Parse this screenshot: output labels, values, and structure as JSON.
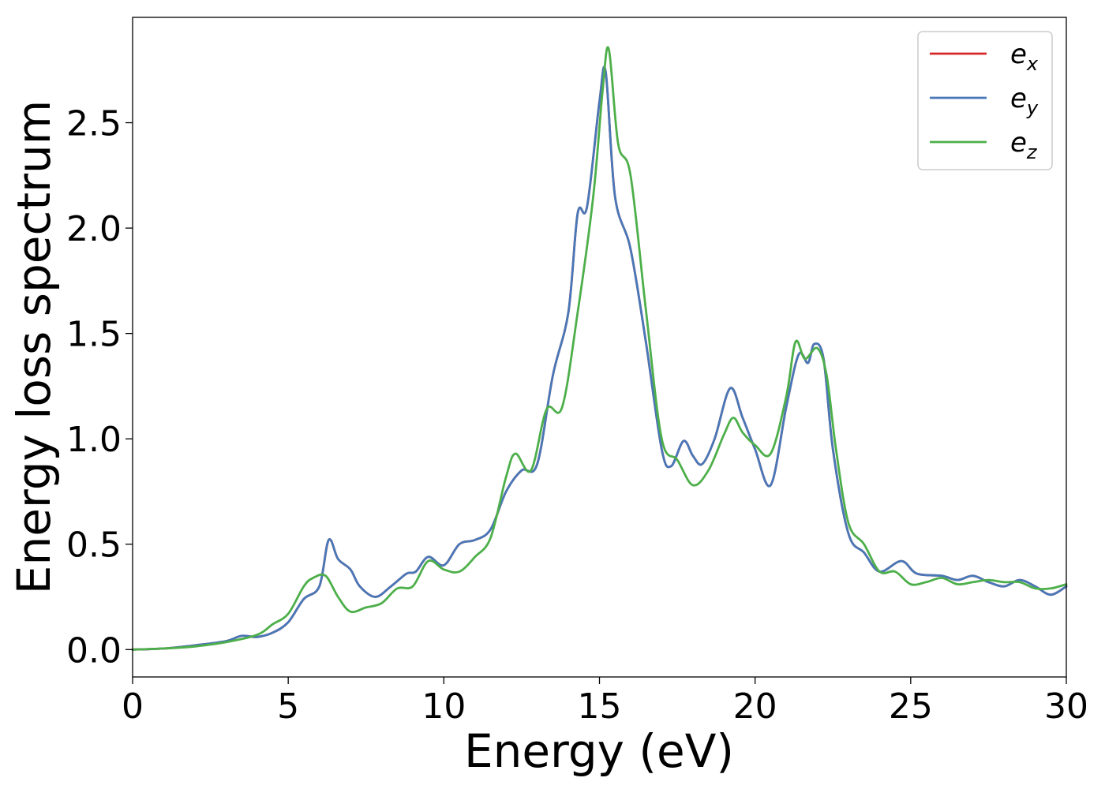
{
  "chart_data": {
    "type": "line",
    "title": "",
    "xlabel": "Energy (eV)",
    "ylabel": "Energy loss spectrum",
    "xlim": [
      0,
      30
    ],
    "ylim": [
      -0.13,
      3.0
    ],
    "xticks": [
      "0",
      "5",
      "10",
      "15",
      "20",
      "25",
      "30"
    ],
    "yticks": [
      "0.0",
      "0.5",
      "1.0",
      "1.5",
      "2.0",
      "2.5"
    ],
    "grid": false,
    "legend_position": "top-right",
    "series": [
      {
        "name": "e_x",
        "legend_base": "e",
        "legend_sub": "x",
        "color": "#d62728",
        "x": [
          0,
          1,
          2,
          3,
          3.5,
          4,
          4.5,
          5,
          5.5,
          6,
          6.3,
          6.6,
          7,
          7.3,
          7.8,
          8.3,
          8.8,
          9.1,
          9.5,
          10,
          10.5,
          11,
          11.5,
          12,
          12.5,
          13,
          13.5,
          14,
          14.3,
          14.6,
          15,
          15.2,
          15.5,
          16,
          16.5,
          17,
          17.3,
          17.7,
          18,
          18.3,
          18.7,
          19.2,
          19.6,
          20,
          20.5,
          21,
          21.4,
          21.7,
          21.9,
          22.2,
          22.5,
          23,
          23.5,
          24,
          24.7,
          25.2,
          26,
          26.5,
          27,
          27.5,
          28,
          28.5,
          29,
          29.5,
          30
        ],
        "values": [
          0,
          0.005,
          0.02,
          0.04,
          0.065,
          0.06,
          0.08,
          0.13,
          0.24,
          0.3,
          0.52,
          0.43,
          0.38,
          0.3,
          0.25,
          0.3,
          0.36,
          0.37,
          0.44,
          0.4,
          0.5,
          0.52,
          0.57,
          0.75,
          0.85,
          0.88,
          1.3,
          1.6,
          2.07,
          2.1,
          2.6,
          2.74,
          2.15,
          1.9,
          1.45,
          0.95,
          0.87,
          0.99,
          0.92,
          0.88,
          1.0,
          1.24,
          1.1,
          0.95,
          0.78,
          1.15,
          1.4,
          1.36,
          1.45,
          1.38,
          0.95,
          0.55,
          0.46,
          0.37,
          0.42,
          0.36,
          0.35,
          0.33,
          0.35,
          0.32,
          0.3,
          0.33,
          0.3,
          0.26,
          0.3
        ]
      },
      {
        "name": "e_y",
        "legend_base": "e",
        "legend_sub": "y",
        "color": "#4878b8",
        "x": [
          0,
          1,
          2,
          3,
          3.5,
          4,
          4.5,
          5,
          5.5,
          6,
          6.3,
          6.6,
          7,
          7.3,
          7.8,
          8.3,
          8.8,
          9.1,
          9.5,
          10,
          10.5,
          11,
          11.5,
          12,
          12.5,
          13,
          13.5,
          14,
          14.3,
          14.6,
          15,
          15.2,
          15.5,
          16,
          16.5,
          17,
          17.3,
          17.7,
          18,
          18.3,
          18.7,
          19.2,
          19.6,
          20,
          20.5,
          21,
          21.4,
          21.7,
          21.9,
          22.2,
          22.5,
          23,
          23.5,
          24,
          24.7,
          25.2,
          26,
          26.5,
          27,
          27.5,
          28,
          28.5,
          29,
          29.5,
          30
        ],
        "values": [
          0,
          0.005,
          0.02,
          0.04,
          0.065,
          0.06,
          0.08,
          0.13,
          0.24,
          0.3,
          0.52,
          0.43,
          0.38,
          0.3,
          0.25,
          0.3,
          0.36,
          0.37,
          0.44,
          0.4,
          0.5,
          0.52,
          0.57,
          0.75,
          0.85,
          0.88,
          1.3,
          1.6,
          2.07,
          2.1,
          2.6,
          2.74,
          2.15,
          1.9,
          1.45,
          0.95,
          0.87,
          0.99,
          0.92,
          0.88,
          1.0,
          1.24,
          1.1,
          0.95,
          0.78,
          1.15,
          1.4,
          1.36,
          1.45,
          1.38,
          0.95,
          0.55,
          0.46,
          0.37,
          0.42,
          0.36,
          0.35,
          0.33,
          0.35,
          0.32,
          0.3,
          0.33,
          0.3,
          0.26,
          0.3
        ]
      },
      {
        "name": "e_z",
        "legend_base": "e",
        "legend_sub": "z",
        "color": "#4daf4a",
        "x": [
          0,
          1,
          2,
          3,
          4,
          4.5,
          5,
          5.5,
          5.8,
          6.2,
          6.6,
          7,
          7.5,
          8,
          8.5,
          9,
          9.5,
          10,
          10.5,
          11,
          11.5,
          12,
          12.3,
          12.8,
          13.3,
          13.8,
          14.3,
          14.8,
          15.1,
          15.3,
          15.6,
          16,
          16.5,
          17,
          17.5,
          18,
          18.5,
          19,
          19.3,
          19.6,
          20,
          20.5,
          21,
          21.3,
          21.6,
          22,
          22.3,
          22.6,
          23,
          23.5,
          24,
          24.5,
          25,
          25.5,
          26,
          26.5,
          27,
          27.5,
          28,
          28.5,
          29,
          29.5,
          30
        ],
        "values": [
          0,
          0.005,
          0.015,
          0.035,
          0.07,
          0.12,
          0.17,
          0.3,
          0.34,
          0.35,
          0.25,
          0.18,
          0.2,
          0.22,
          0.29,
          0.3,
          0.42,
          0.38,
          0.37,
          0.44,
          0.53,
          0.82,
          0.93,
          0.85,
          1.14,
          1.15,
          1.6,
          2.15,
          2.65,
          2.85,
          2.4,
          2.25,
          1.6,
          1.0,
          0.9,
          0.78,
          0.85,
          1.02,
          1.1,
          1.03,
          0.97,
          0.93,
          1.2,
          1.46,
          1.38,
          1.43,
          1.3,
          0.95,
          0.6,
          0.5,
          0.37,
          0.37,
          0.31,
          0.32,
          0.34,
          0.31,
          0.32,
          0.33,
          0.32,
          0.32,
          0.29,
          0.29,
          0.31
        ]
      }
    ]
  }
}
